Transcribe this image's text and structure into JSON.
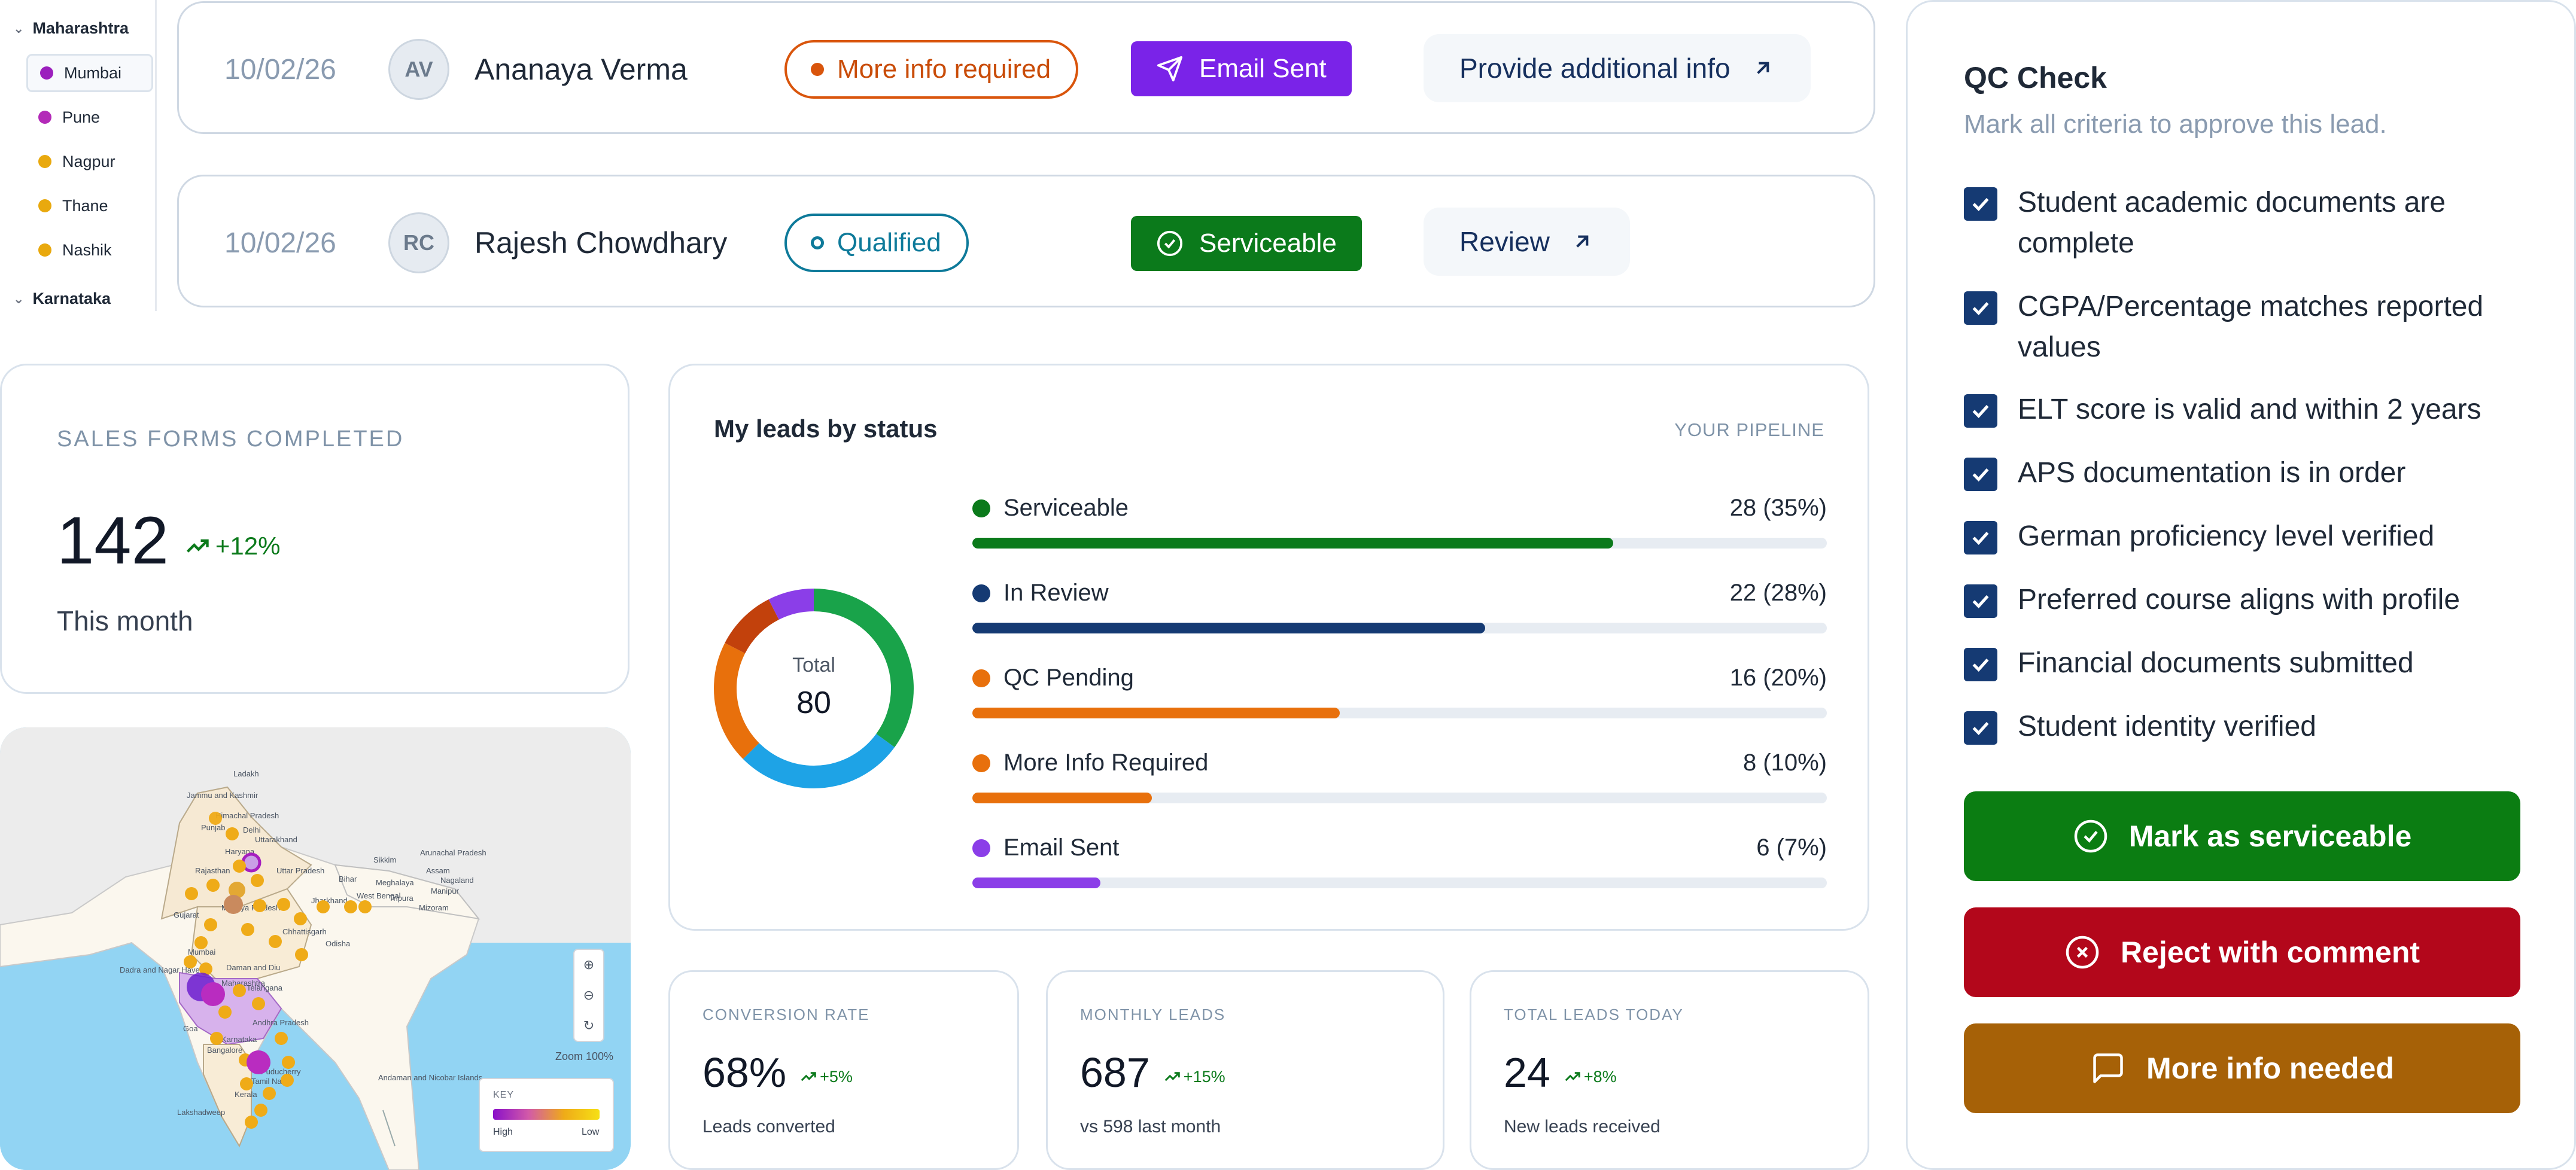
{
  "regions": {
    "states": [
      {
        "name": "Maharashtra",
        "expanded": true
      },
      {
        "name": "Karnataka",
        "expanded": false
      }
    ],
    "cities": [
      {
        "name": "Mumbai",
        "color": "#9b1fbd",
        "active": true
      },
      {
        "name": "Pune",
        "color": "#b32ab8",
        "active": false
      },
      {
        "name": "Nagpur",
        "color": "#e9a90e",
        "active": false
      },
      {
        "name": "Thane",
        "color": "#e9a90e",
        "active": false
      },
      {
        "name": "Nashik",
        "color": "#e9a90e",
        "active": false
      }
    ]
  },
  "leads": [
    {
      "date": "10/02/26",
      "initials": "AV",
      "name": "Ananaya Verma",
      "status": "More info required",
      "action_status": "Email Sent",
      "link": "Provide additional info"
    },
    {
      "date": "10/02/26",
      "initials": "RC",
      "name": "Rajesh Chowdhary",
      "status": "Qualified",
      "action_status": "Serviceable",
      "link": "Review"
    }
  ],
  "sales": {
    "title": "SALES FORMS COMPLETED",
    "value": "142",
    "trend": "+12%",
    "period": "This month"
  },
  "map": {
    "labels": [
      "Ladakh",
      "Jammu and Kashmir",
      "Himachal Pradesh",
      "Punjab",
      "Uttarakhand",
      "Haryana",
      "Delhi",
      "Rajasthan",
      "Uttar Pradesh",
      "Bihar",
      "Sikkim",
      "Arunachal Pradesh",
      "Assam",
      "Meghalaya",
      "Nagaland",
      "Manipur",
      "Tripura",
      "Mizoram",
      "West Bengal",
      "Jharkhand",
      "Gujarat",
      "Madhya Pradesh",
      "Chhattisgarh",
      "Odisha",
      "Dadra and Nagar Haveli",
      "Daman and Diu",
      "Mumbai",
      "Maharashtra",
      "Telangana",
      "Andhra Pradesh",
      "Goa",
      "Karnataka",
      "Bangalore",
      "Tamil Nadu",
      "Puducherry",
      "Kerala",
      "Lakshadweep",
      "Andaman and Nicobar Islands"
    ],
    "zoom": "Zoom 100%",
    "key_title": "KEY",
    "key_high": "High",
    "key_low": "Low"
  },
  "status_card": {
    "title": "My leads by status",
    "tag": "YOUR PIPELINE",
    "total_label": "Total",
    "total": "80"
  },
  "chart_data": {
    "type": "bar",
    "title": "My leads by status",
    "categories": [
      "Serviceable",
      "In Review",
      "QC Pending",
      "More Info Required",
      "Email Sent"
    ],
    "values": [
      28,
      22,
      16,
      8,
      6
    ],
    "percents": [
      35,
      28,
      20,
      10,
      7
    ],
    "labels": [
      "28 (35%)",
      "22 (28%)",
      "16 (20%)",
      "8 (10%)",
      "6 (7%)"
    ],
    "colors": [
      "#0b7a1b",
      "#153a73",
      "#e8700c",
      "#e8700c",
      "#8b3ee8"
    ],
    "bar_fill": [
      0.75,
      0.6,
      0.43,
      0.21,
      0.15
    ],
    "donut": {
      "total": 80,
      "segments": [
        {
          "value": 28,
          "color": "#19a34a"
        },
        {
          "value": 22,
          "color": "#1ea3e6"
        },
        {
          "value": 16,
          "color": "#e8700c"
        },
        {
          "value": 8,
          "color": "#c2410c"
        },
        {
          "value": 6,
          "color": "#8b3ee8"
        }
      ]
    }
  },
  "kpis": [
    {
      "title": "CONVERSION RATE",
      "value": "68%",
      "trend": "+5%",
      "sub": "Leads converted"
    },
    {
      "title": "MONTHLY LEADS",
      "value": "687",
      "trend": "+15%",
      "sub": "vs 598 last month"
    },
    {
      "title": "TOTAL LEADS TODAY",
      "value": "24",
      "trend": "+8%",
      "sub": "New leads received"
    }
  ],
  "qc": {
    "title": "QC Check",
    "subtitle": "Mark all criteria to approve this lead.",
    "criteria": [
      "Student academic documents are complete",
      "CGPA/Percentage matches reported values",
      "ELT score is valid and within 2 years",
      "APS documentation is in order",
      "German proficiency level verified",
      "Preferred course aligns with profile",
      "Financial documents submitted",
      "Student identity verified"
    ],
    "buttons": {
      "serviceable": "Mark as serviceable",
      "reject": "Reject with comment",
      "more_info": "More info needed"
    },
    "colors": {
      "serviceable": "#0b7d12",
      "reject": "#b3071b",
      "more_info": "#a66107"
    }
  }
}
